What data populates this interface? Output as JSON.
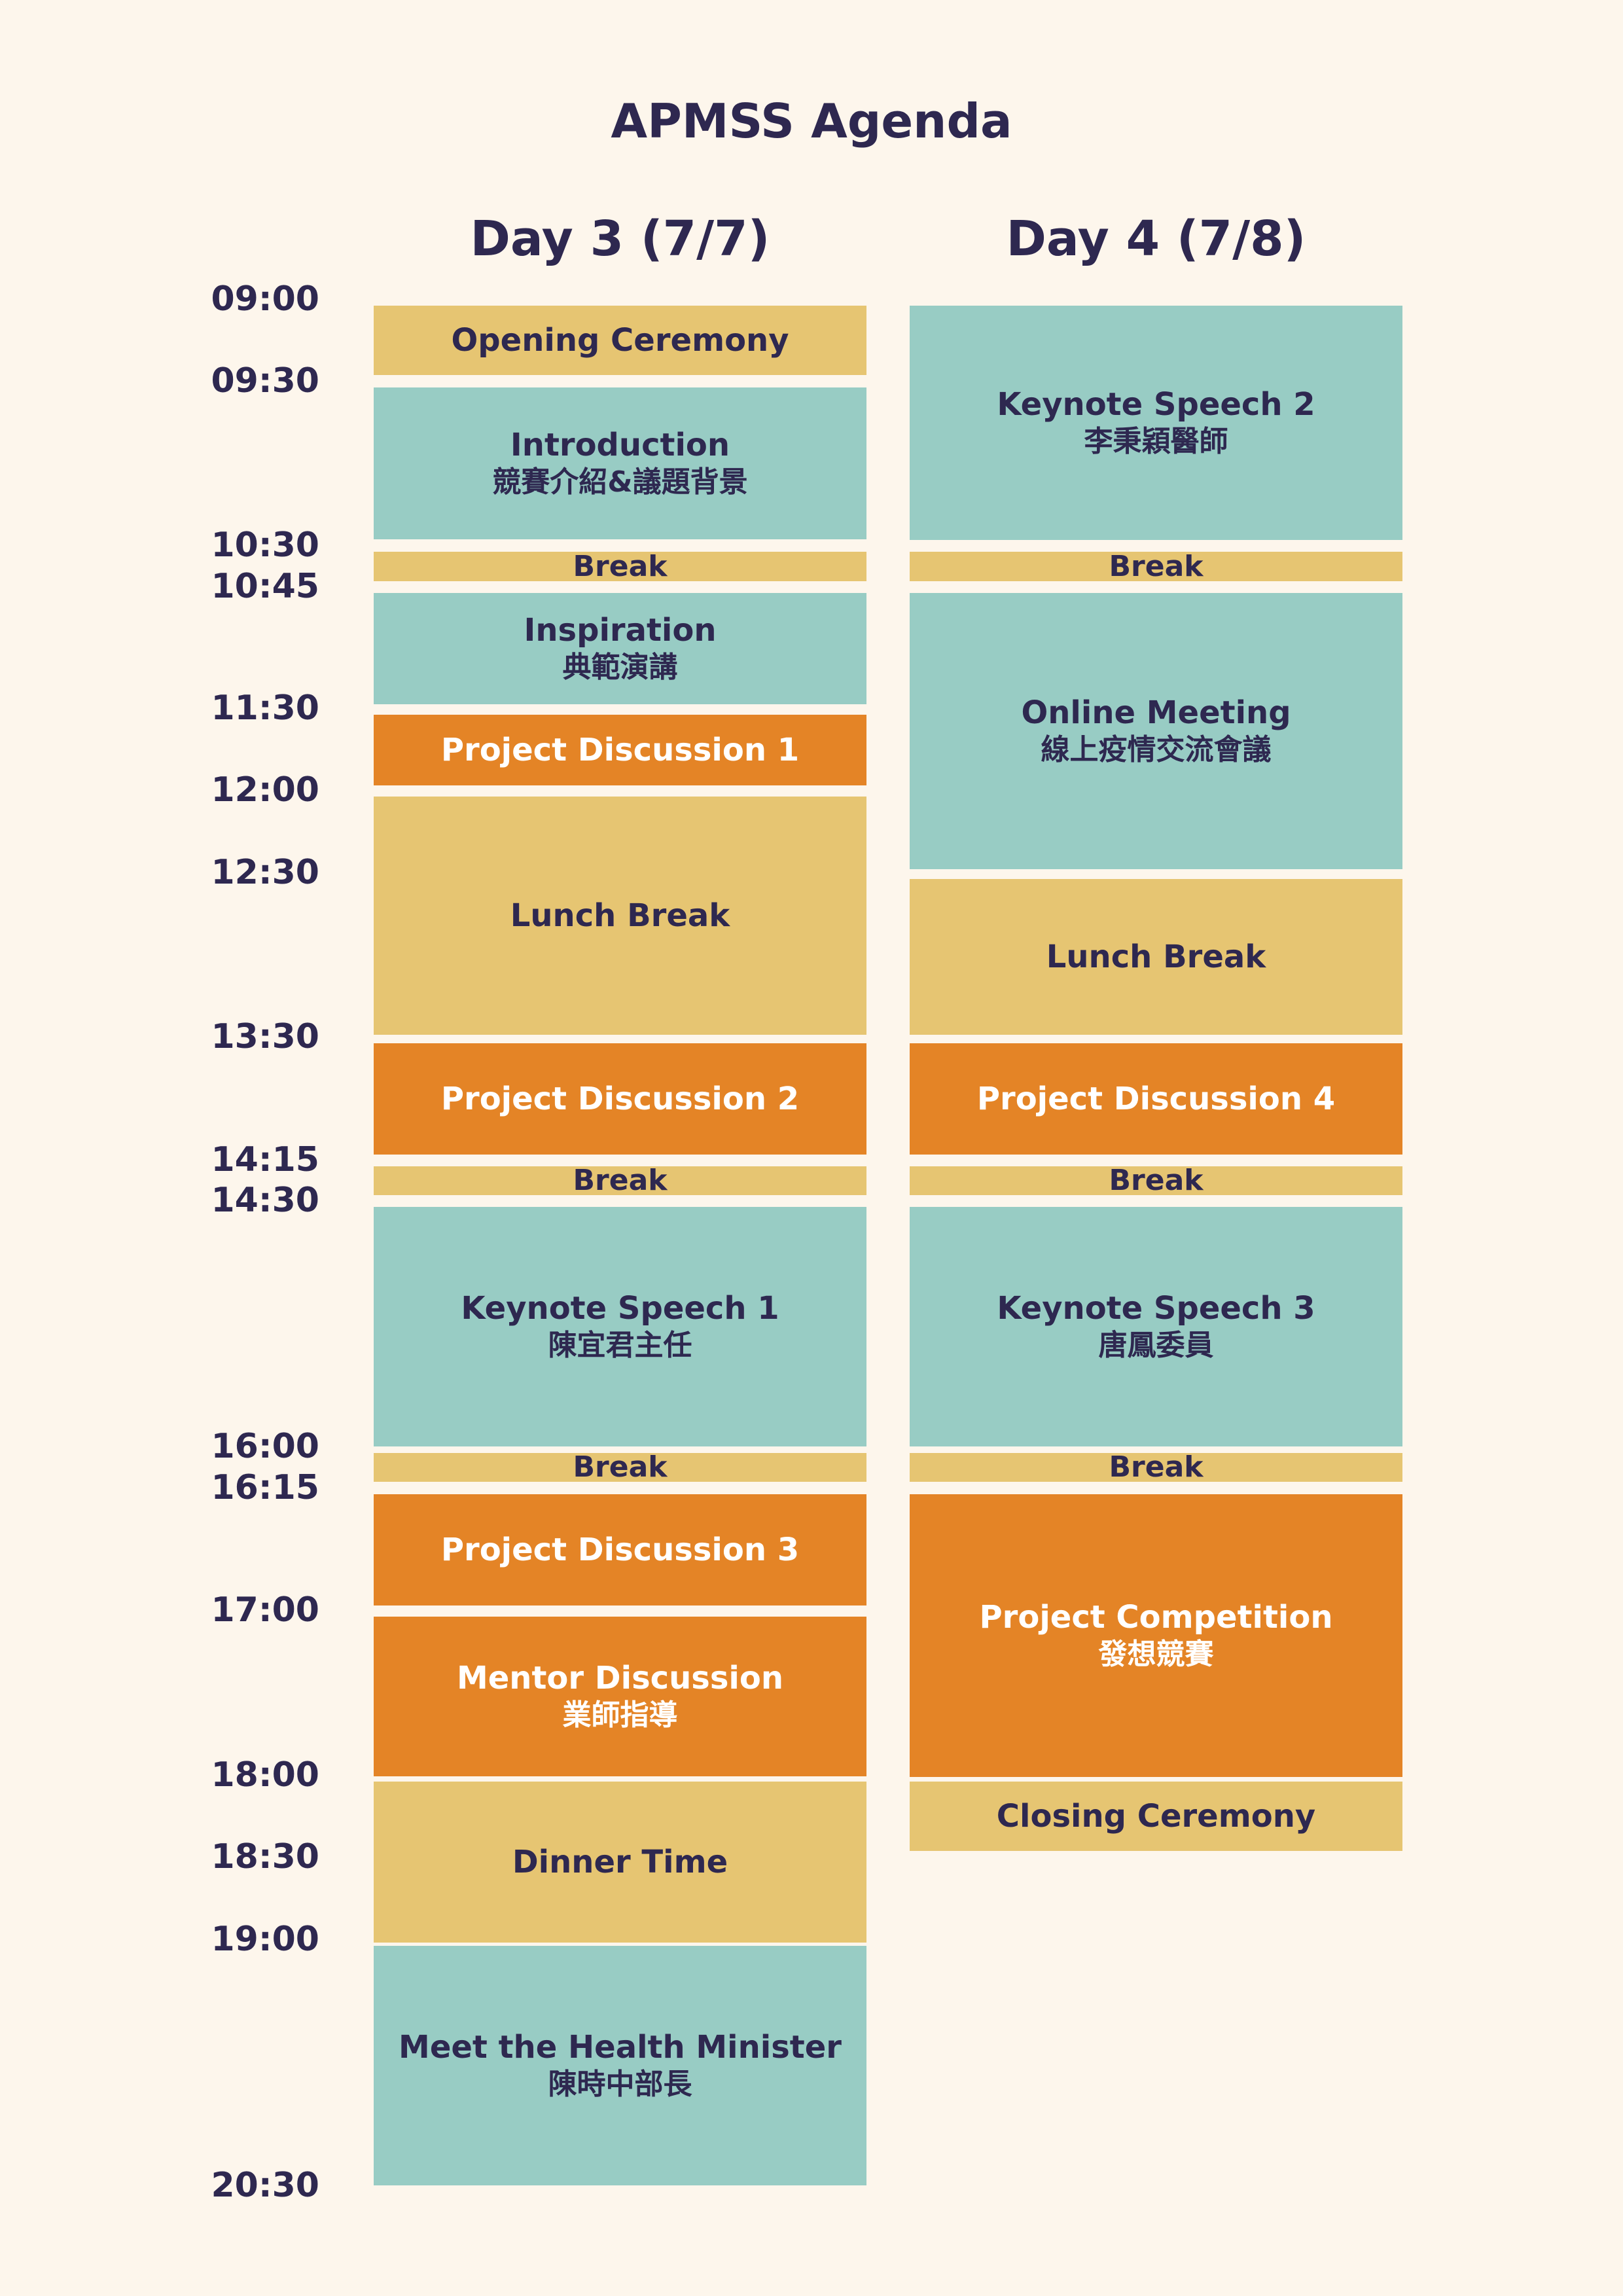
{
  "title": "APMSS Agenda",
  "colors": {
    "background": "#fdf6ec",
    "text": "#2e2850",
    "yellow": "#e6c572",
    "teal": "#98ccc4",
    "orange": "#e48426"
  },
  "times": [
    "09:00",
    "09:30",
    "10:30",
    "10:45",
    "11:30",
    "12:00",
    "12:30",
    "13:30",
    "14:15",
    "14:30",
    "16:00",
    "16:15",
    "17:00",
    "18:00",
    "18:30",
    "19:00",
    "20:30"
  ],
  "day3": {
    "header": "Day 3 (7/7)",
    "sessions": [
      {
        "title": "Opening Ceremony",
        "subtitle": "",
        "color": "yellow"
      },
      {
        "title": "Introduction",
        "subtitle": "競賽介紹&議題背景",
        "color": "teal"
      },
      {
        "title": "Break",
        "subtitle": "",
        "color": "yellow"
      },
      {
        "title": "Inspiration",
        "subtitle": "典範演講",
        "color": "teal"
      },
      {
        "title": "Project Discussion 1",
        "subtitle": "",
        "color": "orange"
      },
      {
        "title": "Lunch Break",
        "subtitle": "",
        "color": "yellow"
      },
      {
        "title": "Project Discussion 2",
        "subtitle": "",
        "color": "orange"
      },
      {
        "title": "Break",
        "subtitle": "",
        "color": "yellow"
      },
      {
        "title": "Keynote Speech 1",
        "subtitle": "陳宜君主任",
        "color": "teal"
      },
      {
        "title": "Break",
        "subtitle": "",
        "color": "yellow"
      },
      {
        "title": "Project Discussion 3",
        "subtitle": "",
        "color": "orange"
      },
      {
        "title": "Mentor Discussion",
        "subtitle": "業師指導",
        "color": "orange"
      },
      {
        "title": "Dinner Time",
        "subtitle": "",
        "color": "yellow"
      },
      {
        "title": "Meet the Health Minister",
        "subtitle": "陳時中部長",
        "color": "teal"
      }
    ]
  },
  "day4": {
    "header": "Day 4 (7/8)",
    "sessions": [
      {
        "title": "Keynote Speech 2",
        "subtitle": "李秉穎醫師",
        "color": "teal"
      },
      {
        "title": "Break",
        "subtitle": "",
        "color": "yellow"
      },
      {
        "title": "Online Meeting",
        "subtitle": "線上疫情交流會議",
        "color": "teal"
      },
      {
        "title": "Lunch Break",
        "subtitle": "",
        "color": "yellow"
      },
      {
        "title": "Project Discussion 4",
        "subtitle": "",
        "color": "orange"
      },
      {
        "title": "Break",
        "subtitle": "",
        "color": "yellow"
      },
      {
        "title": "Keynote Speech 3",
        "subtitle": "唐鳳委員",
        "color": "teal"
      },
      {
        "title": "Break",
        "subtitle": "",
        "color": "yellow"
      },
      {
        "title": "Project Competition",
        "subtitle": "發想競賽",
        "color": "orange"
      },
      {
        "title": "Closing Ceremony",
        "subtitle": "",
        "color": "yellow"
      }
    ]
  }
}
